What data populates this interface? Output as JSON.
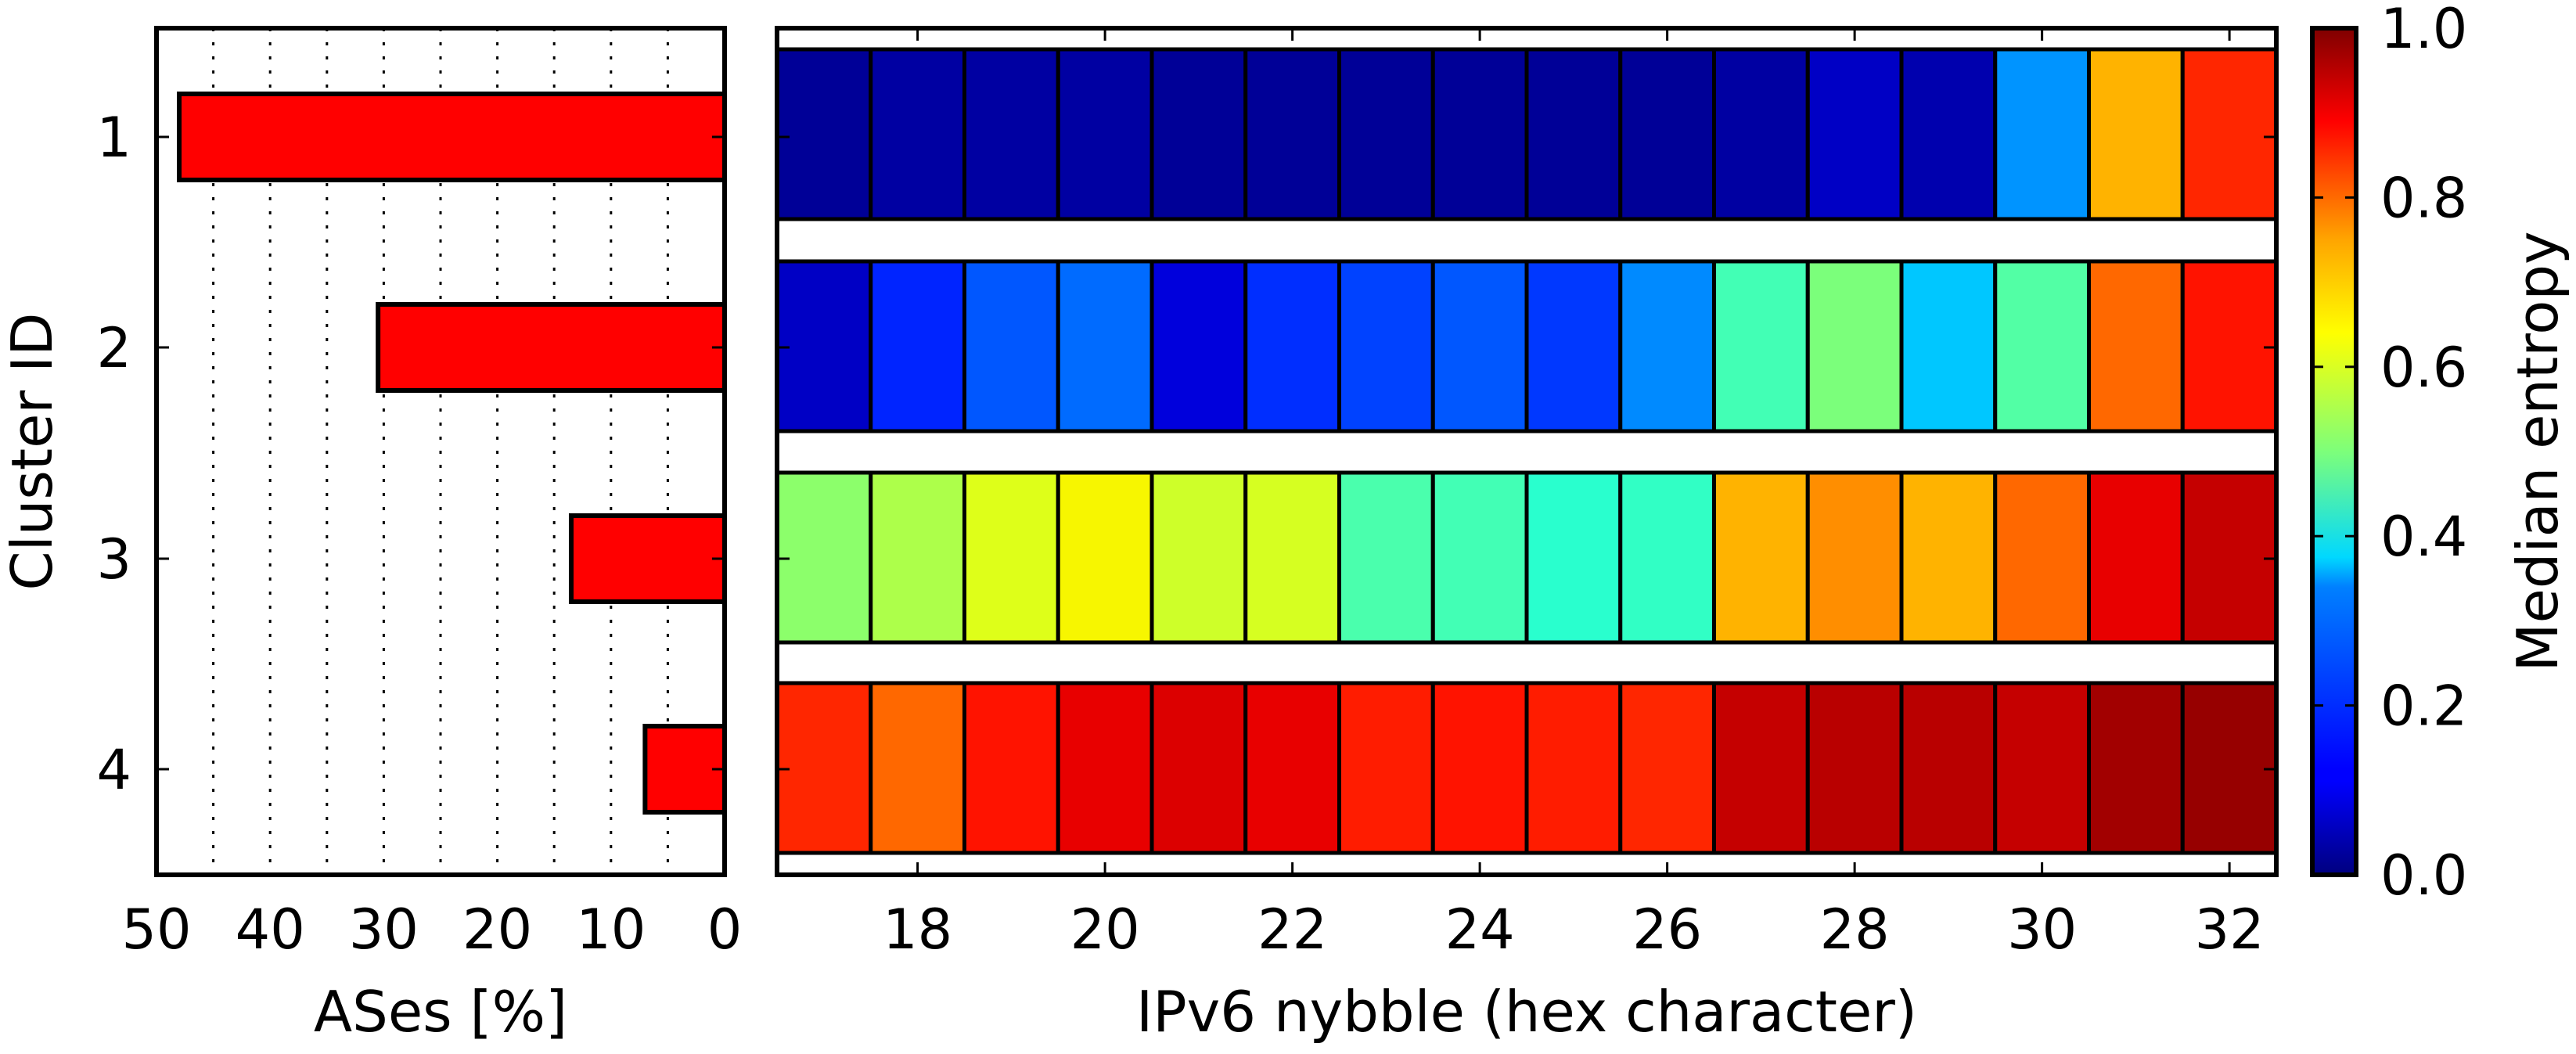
{
  "chart_data": [
    {
      "type": "bar",
      "orientation": "horizontal",
      "xaxis_inverted": true,
      "categories": [
        "1",
        "2",
        "3",
        "4"
      ],
      "values": [
        48,
        30.5,
        13.5,
        7
      ],
      "bar_color": "#ff0000",
      "xlabel": "ASes [%]",
      "ylabel": "Cluster ID",
      "xlim": [
        50,
        0
      ],
      "xticks": [
        "50",
        "40",
        "30",
        "20",
        "10",
        "0"
      ],
      "grid": "dotted vertical lines every 5"
    },
    {
      "type": "heatmap",
      "xlabel": "IPv6 nybble (hex character)",
      "x": [
        17,
        18,
        19,
        20,
        21,
        22,
        23,
        24,
        25,
        26,
        27,
        28,
        29,
        30,
        31,
        32
      ],
      "xticks": [
        "18",
        "20",
        "22",
        "24",
        "26",
        "28",
        "30",
        "32"
      ],
      "rows": [
        "1",
        "2",
        "3",
        "4"
      ],
      "values": [
        [
          0.02,
          0.03,
          0.03,
          0.03,
          0.02,
          0.02,
          0.02,
          0.02,
          0.02,
          0.02,
          0.03,
          0.06,
          0.04,
          0.27,
          0.72,
          0.87
        ],
        [
          0.06,
          0.16,
          0.21,
          0.23,
          0.08,
          0.17,
          0.19,
          0.21,
          0.18,
          0.26,
          0.43,
          0.5,
          0.32,
          0.45,
          0.8,
          0.89
        ],
        [
          0.52,
          0.56,
          0.62,
          0.65,
          0.6,
          0.61,
          0.44,
          0.43,
          0.4,
          0.41,
          0.72,
          0.76,
          0.72,
          0.8,
          0.91,
          0.94
        ],
        [
          0.87,
          0.8,
          0.89,
          0.91,
          0.92,
          0.91,
          0.88,
          0.89,
          0.88,
          0.87,
          0.94,
          0.95,
          0.95,
          0.94,
          0.97,
          0.98
        ]
      ],
      "colorbar": {
        "label": "Median entropy",
        "range": [
          0,
          1
        ],
        "ticks": [
          "0.0",
          "0.2",
          "0.4",
          "0.6",
          "0.8",
          "1.0"
        ],
        "colormap": "jet"
      }
    }
  ]
}
